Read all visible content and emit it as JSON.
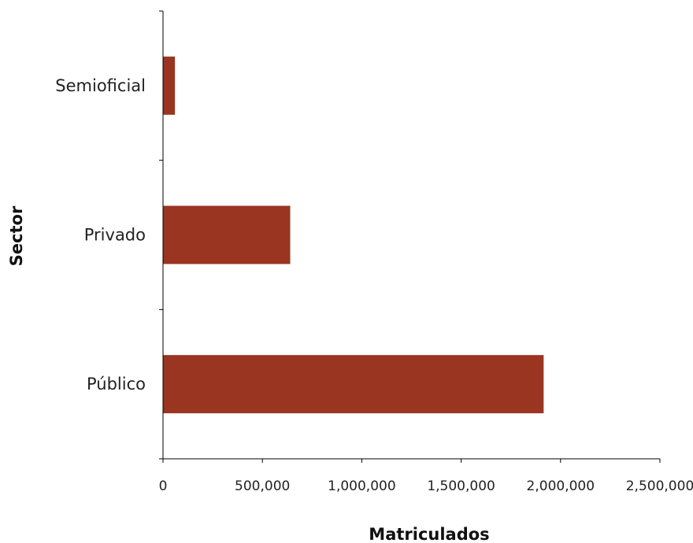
{
  "chart_data": {
    "type": "bar",
    "orientation": "horizontal",
    "categories": [
      "Semioficial",
      "Privado",
      "Público"
    ],
    "values": [
      60000,
      640000,
      1915000
    ],
    "xlabel": "Matriculados",
    "ylabel": "Sector",
    "xlim": [
      0,
      2500000
    ],
    "xticks": [
      0,
      500000,
      1000000,
      1500000,
      2000000,
      2500000
    ],
    "xtick_labels": [
      "0",
      "500,000",
      "1,000,000",
      "1,500,000",
      "2,000,000",
      "2,500,000"
    ],
    "grid": false,
    "legend": "none",
    "bar_color": "#993520"
  }
}
